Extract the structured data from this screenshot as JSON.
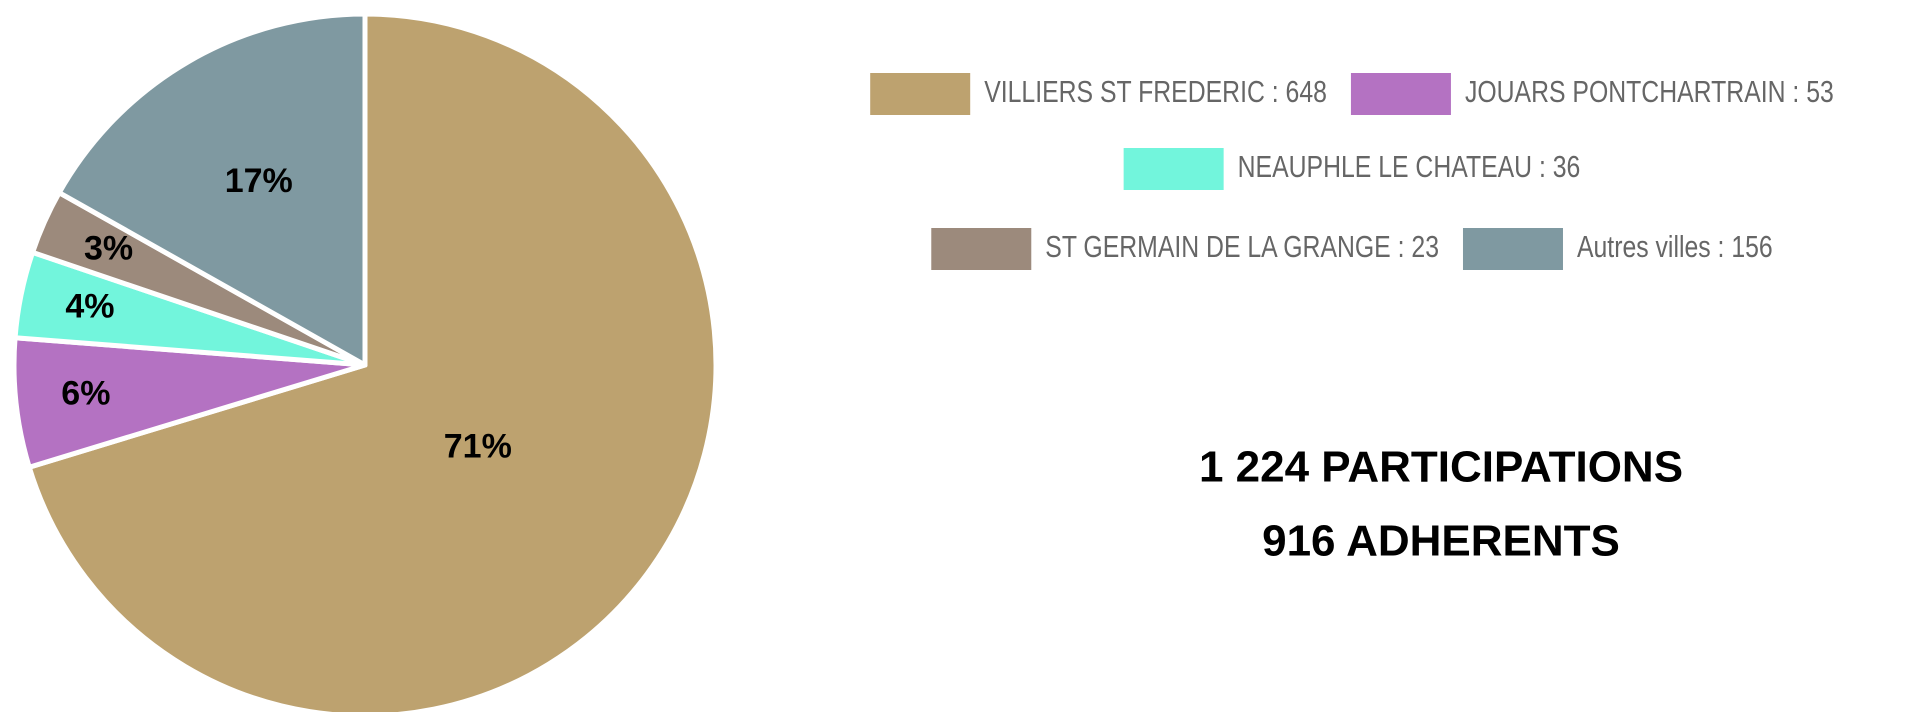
{
  "chart_data": {
    "type": "pie",
    "categories": [
      "VILLIERS ST FREDERIC : 648",
      "JOUARS PONTCHARTRAIN : 53",
      "NEAUPHLE LE CHATEAU : 36",
      "ST GERMAIN DE LA GRANGE : 23",
      "Autres villes : 156"
    ],
    "values": [
      71,
      6,
      4,
      3,
      17
    ],
    "value_labels": [
      "71%",
      "6%",
      "4%",
      "3%",
      "17%"
    ],
    "colors": [
      "#bda26f",
      "#b472c2",
      "#72f5dc",
      "#9c8a7c",
      "#7f99a1"
    ],
    "legend": "right",
    "annotations": [
      "1 224 PARTICIPATIONS",
      "916 ADHERENTS"
    ]
  }
}
